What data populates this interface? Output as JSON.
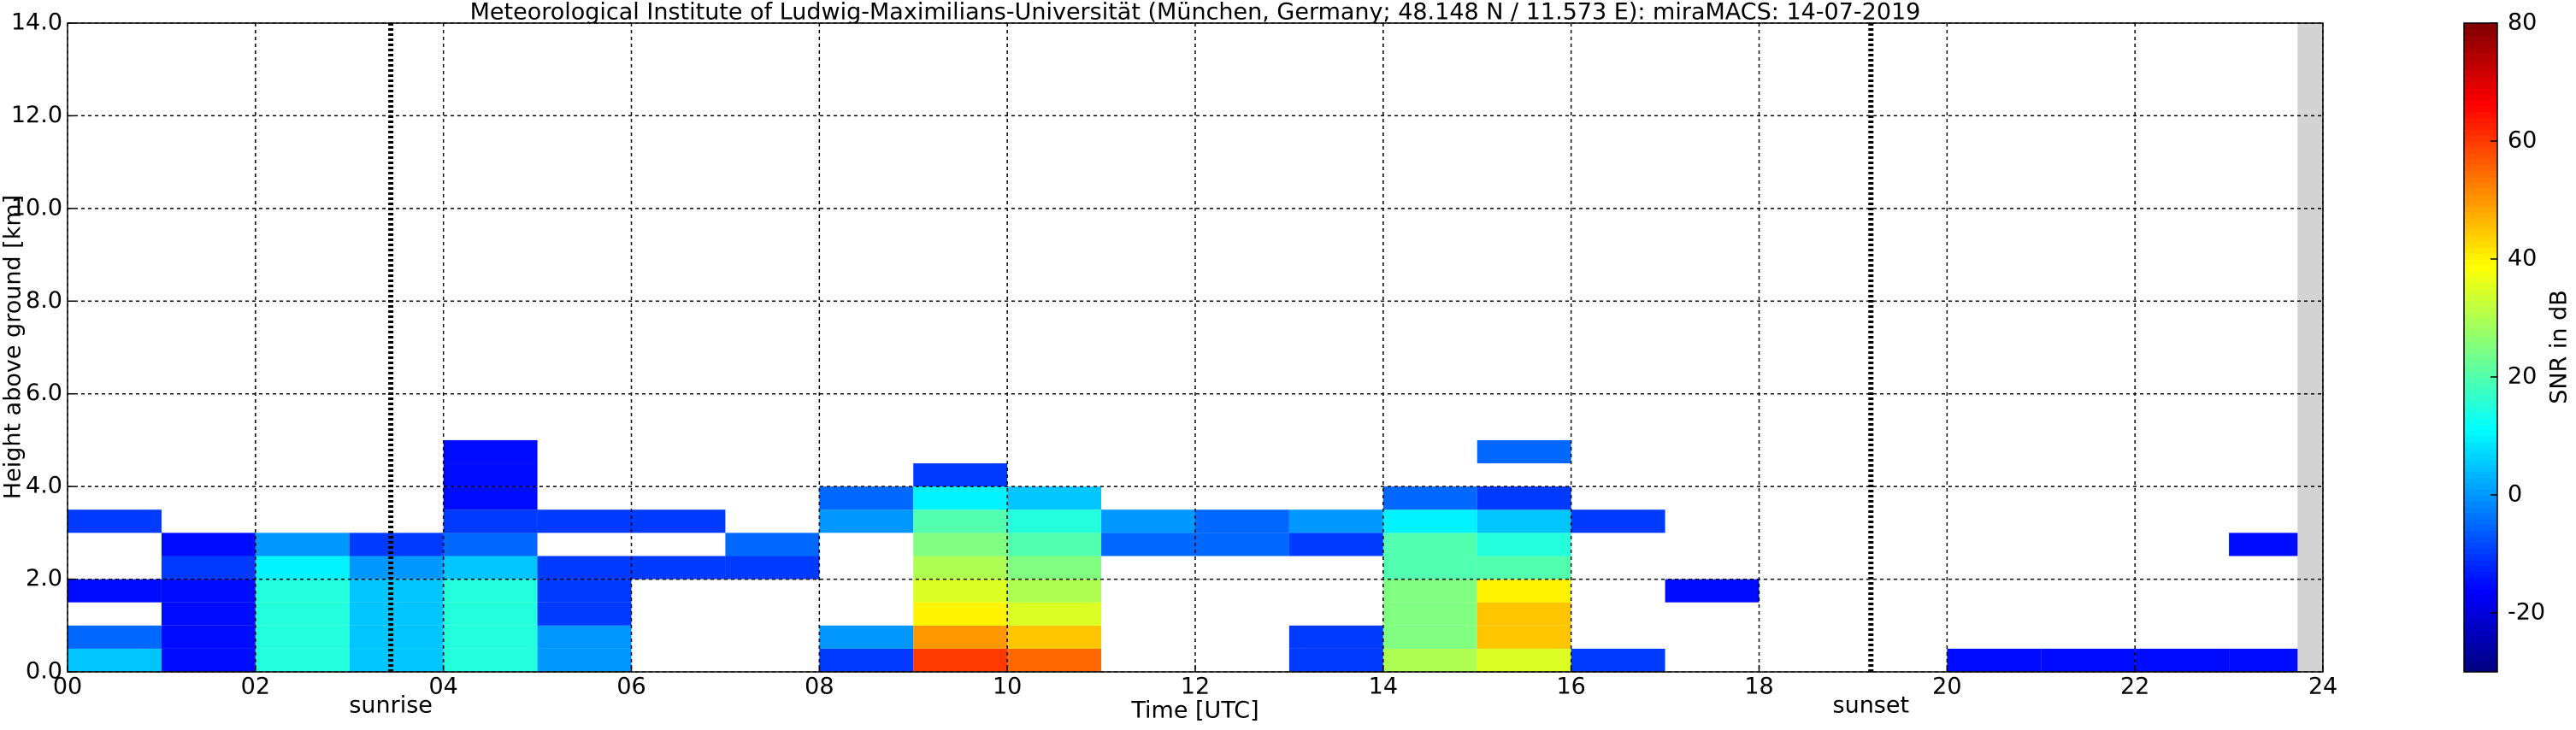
{
  "chart_data": {
    "type": "heatmap",
    "title": "Meteorological Institute of Ludwig-Maximilians-Universität (München, Germany; 48.148 N / 11.573 E):    miraMACS: 14-07-2019",
    "xlabel": "Time [UTC]",
    "ylabel": "Height above ground [km]",
    "xlim": [
      0,
      24
    ],
    "ylim": [
      0,
      14
    ],
    "xticks": [
      {
        "value": 0,
        "label": "00"
      },
      {
        "value": 2,
        "label": "02"
      },
      {
        "value": 4,
        "label": "04"
      },
      {
        "value": 6,
        "label": "06"
      },
      {
        "value": 8,
        "label": "08"
      },
      {
        "value": 10,
        "label": "10"
      },
      {
        "value": 12,
        "label": "12"
      },
      {
        "value": 14,
        "label": "14"
      },
      {
        "value": 16,
        "label": "16"
      },
      {
        "value": 18,
        "label": "18"
      },
      {
        "value": 20,
        "label": "20"
      },
      {
        "value": 22,
        "label": "22"
      },
      {
        "value": 24,
        "label": "24"
      }
    ],
    "yticks": [
      {
        "value": 0,
        "label": "0.0"
      },
      {
        "value": 2,
        "label": "2.0"
      },
      {
        "value": 4,
        "label": "4.0"
      },
      {
        "value": 6,
        "label": "6.0"
      },
      {
        "value": 8,
        "label": "8.0"
      },
      {
        "value": 10,
        "label": "10.0"
      },
      {
        "value": 12,
        "label": "12.0"
      },
      {
        "value": 14,
        "label": "14.0"
      }
    ],
    "grid": true,
    "x_bins": [
      0,
      1,
      2,
      3,
      4,
      5,
      6,
      7,
      8,
      9,
      10,
      11,
      12,
      13,
      14,
      15,
      16,
      17,
      18,
      19,
      20,
      21,
      22,
      23,
      24
    ],
    "y_bins": [
      0,
      0.5,
      1,
      1.5,
      2,
      2.5,
      3,
      3.5,
      4,
      4.5,
      5
    ],
    "values": [
      [
        5,
        -15,
        15,
        5,
        15,
        0,
        null,
        null,
        -10,
        60,
        55,
        null,
        null,
        -10,
        30,
        35,
        -10,
        null,
        null,
        null,
        -15,
        -15,
        -15,
        -15
      ],
      [
        -5,
        -15,
        15,
        5,
        15,
        0,
        null,
        null,
        0,
        50,
        45,
        null,
        null,
        -10,
        25,
        45,
        null,
        null,
        null,
        null,
        null,
        null,
        null,
        null
      ],
      [
        null,
        -15,
        15,
        5,
        15,
        -10,
        null,
        null,
        null,
        40,
        35,
        null,
        null,
        null,
        25,
        45,
        null,
        null,
        null,
        null,
        null,
        null,
        null,
        null
      ],
      [
        -15,
        -15,
        15,
        5,
        15,
        -10,
        null,
        null,
        null,
        35,
        30,
        null,
        null,
        null,
        25,
        40,
        null,
        -15,
        null,
        null,
        null,
        null,
        null,
        null
      ],
      [
        null,
        -10,
        10,
        0,
        5,
        -10,
        -10,
        -10,
        null,
        30,
        25,
        null,
        null,
        null,
        20,
        20,
        null,
        null,
        null,
        null,
        null,
        null,
        null,
        null
      ],
      [
        null,
        -15,
        0,
        -10,
        -5,
        null,
        null,
        -5,
        null,
        25,
        20,
        -5,
        -5,
        -10,
        20,
        15,
        null,
        null,
        null,
        null,
        null,
        null,
        null,
        -15
      ],
      [
        -10,
        null,
        null,
        null,
        -10,
        -10,
        -10,
        null,
        0,
        20,
        15,
        0,
        -5,
        0,
        10,
        5,
        -10,
        null,
        null,
        null,
        null,
        null,
        null,
        null
      ],
      [
        null,
        null,
        null,
        null,
        -15,
        null,
        null,
        null,
        -5,
        10,
        5,
        null,
        null,
        null,
        -5,
        -10,
        null,
        null,
        null,
        null,
        null,
        null,
        null,
        null
      ],
      [
        null,
        null,
        null,
        null,
        -15,
        null,
        null,
        null,
        null,
        -10,
        null,
        null,
        null,
        null,
        null,
        null,
        null,
        null,
        null,
        null,
        null,
        null,
        null,
        null
      ],
      [
        null,
        null,
        null,
        null,
        -15,
        null,
        null,
        null,
        null,
        null,
        null,
        null,
        null,
        null,
        null,
        -5,
        null,
        null,
        null,
        null,
        null,
        null,
        null,
        null
      ]
    ],
    "annotations": [
      {
        "text": "sunrise",
        "x": 3.44
      },
      {
        "text": "sunset",
        "x": 19.19
      }
    ],
    "shaded_xrange": [
      23.73,
      24
    ],
    "colorbar": {
      "label": "SNR in dB",
      "colormap": "jet",
      "lim": [
        -30,
        80
      ],
      "ticks": [
        -20,
        0,
        20,
        40,
        60,
        80
      ]
    }
  }
}
